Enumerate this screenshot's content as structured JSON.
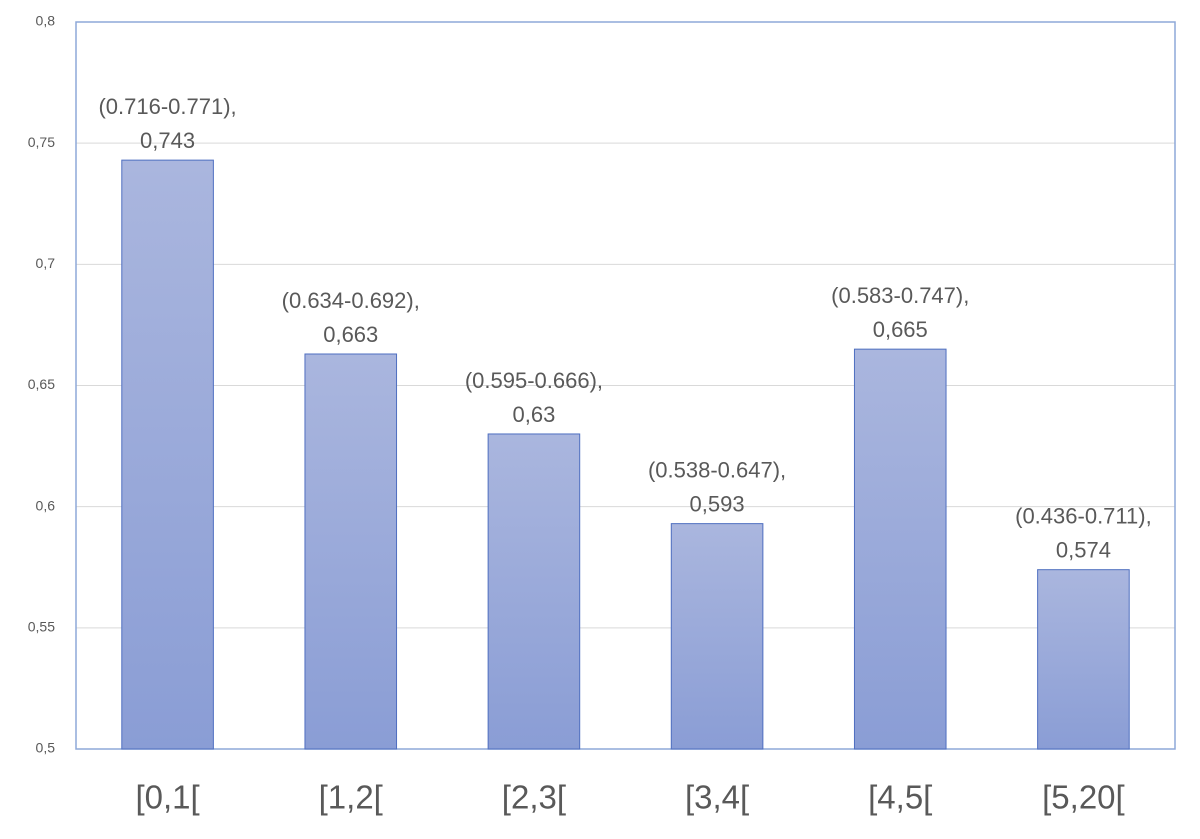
{
  "chart_data": {
    "type": "bar",
    "categories": [
      "[0,1[",
      "[1,2[",
      "[2,3[",
      "[3,4[",
      "[4,5[",
      "[5,20["
    ],
    "values": [
      0.743,
      0.663,
      0.63,
      0.593,
      0.665,
      0.574
    ],
    "value_labels": [
      "0,743",
      "0,663",
      "0,63",
      "0,593",
      "0,665",
      "0,574"
    ],
    "interval_labels": [
      "(0.716-0.771),",
      "(0.634-0.692),",
      "(0.595-0.666),",
      "(0.538-0.647),",
      "(0.583-0.747),",
      "(0.436-0.711),"
    ],
    "gradient": [
      "#aab6de",
      "#8a9dd5"
    ],
    "edge_color": "#4f6fc0",
    "frame_color": "#8ea8d8",
    "ylim": [
      0.5,
      0.8
    ],
    "yticks": [
      {
        "value": 0.5,
        "label": "0,5"
      },
      {
        "value": 0.55,
        "label": "0,55"
      },
      {
        "value": 0.6,
        "label": "0,6"
      },
      {
        "value": 0.65,
        "label": "0,65"
      },
      {
        "value": 0.7,
        "label": "0,7"
      },
      {
        "value": 0.75,
        "label": "0,75"
      },
      {
        "value": 0.8,
        "label": "0,8"
      }
    ],
    "grid": true
  }
}
